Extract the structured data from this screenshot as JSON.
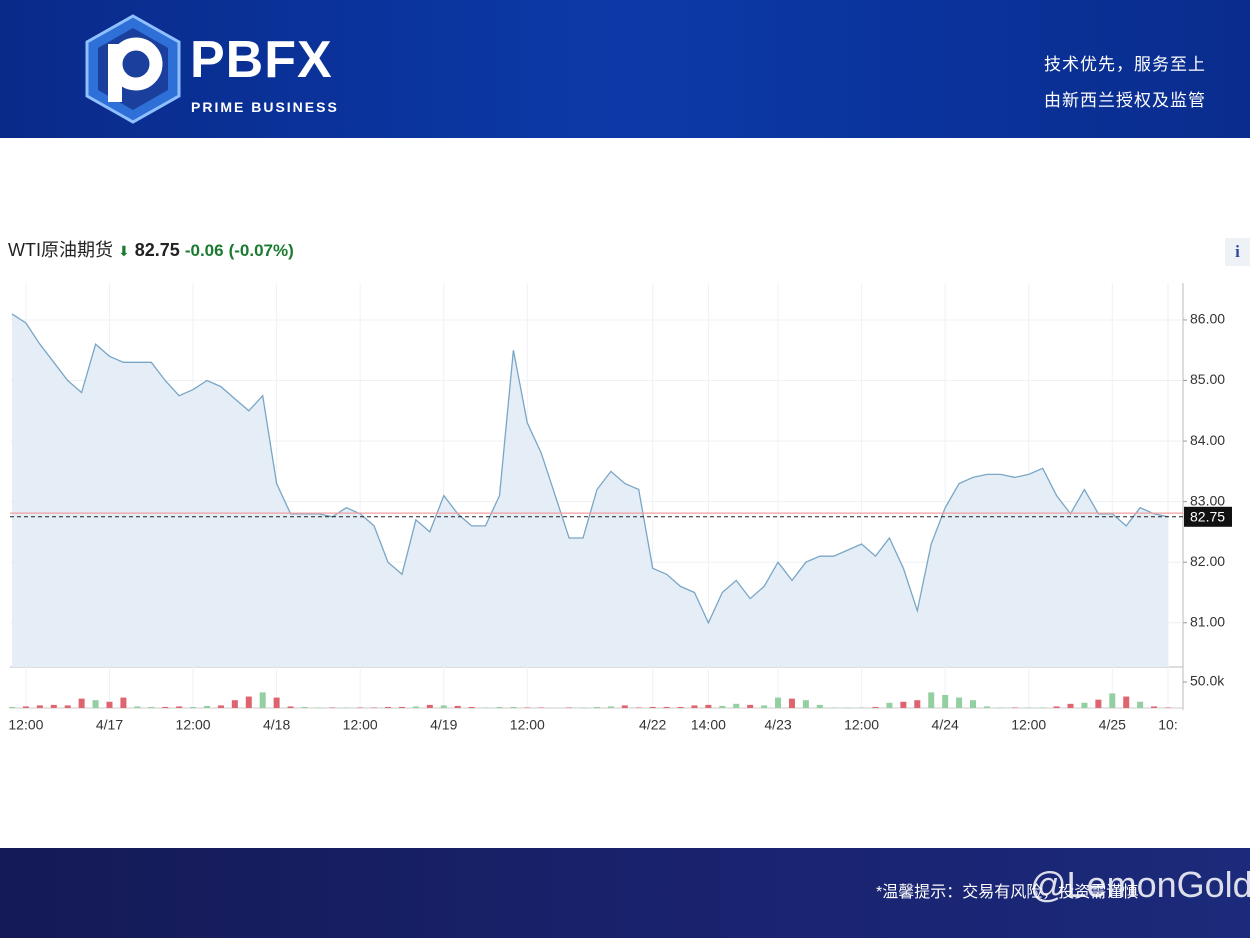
{
  "header": {
    "logo": "PBFX",
    "logo_sub": "PRIME BUSINESS",
    "slogan_1": "技术优先，服务至上",
    "slogan_2": "由新西兰授权及监管"
  },
  "chart_data": {
    "type": "line",
    "title": "WTI原油期货",
    "last": 82.75,
    "change": -0.06,
    "change_pct": {
      "value": -0.07,
      "label": "(-0.07%)"
    },
    "categories": [
      null,
      "12:00",
      null,
      null,
      null,
      null,
      null,
      "4/17",
      null,
      null,
      null,
      null,
      null,
      "12:00",
      null,
      null,
      null,
      null,
      null,
      "4/18",
      null,
      null,
      null,
      null,
      null,
      "12:00",
      null,
      null,
      null,
      null,
      null,
      "4/19",
      null,
      null,
      null,
      null,
      null,
      "12:00",
      null,
      null,
      null,
      null,
      null,
      null,
      null,
      null,
      "4/22",
      null,
      null,
      null,
      "14:00",
      null,
      null,
      null,
      null,
      "4/23",
      null,
      null,
      null,
      null,
      null,
      "12:00",
      null,
      null,
      null,
      null,
      null,
      "4/24",
      null,
      null,
      null,
      null,
      null,
      "12:00",
      null,
      null,
      null,
      null,
      null,
      "4/25",
      null,
      null,
      null,
      "10:"
    ],
    "series": [
      {
        "name": "WTI原油期货",
        "color": "#7aa6c6",
        "fill": "#e5eef6",
        "values": [
          86.1,
          85.95,
          85.6,
          85.3,
          85.0,
          84.8,
          85.6,
          85.4,
          85.3,
          85.3,
          85.3,
          85.0,
          84.75,
          84.85,
          85.0,
          84.9,
          84.7,
          84.5,
          84.75,
          83.3,
          82.8,
          82.8,
          82.8,
          82.75,
          82.9,
          82.8,
          82.6,
          82.0,
          81.8,
          82.7,
          82.5,
          83.1,
          82.8,
          82.6,
          82.6,
          83.1,
          85.5,
          84.3,
          83.8,
          83.1,
          82.4,
          82.4,
          83.2,
          83.5,
          83.3,
          83.2,
          81.9,
          81.8,
          81.6,
          81.5,
          81.0,
          81.5,
          81.7,
          81.4,
          81.6,
          82.0,
          81.7,
          82.0,
          82.1,
          82.1,
          82.2,
          82.3,
          82.1,
          82.4,
          81.9,
          81.2,
          82.3,
          82.9,
          83.3,
          83.4,
          83.45,
          83.45,
          83.4,
          83.45,
          83.55,
          83.1,
          82.8,
          83.2,
          82.8,
          82.8,
          82.6,
          82.9,
          82.8,
          82.75
        ]
      },
      {
        "name": "volume",
        "up_color": "#93cfa1",
        "down_color": "#de6470",
        "values": [
          2000,
          3000,
          5000,
          6000,
          5000,
          18000,
          15000,
          12000,
          20000,
          3000,
          2000,
          2000,
          3000,
          2000,
          4000,
          5000,
          15000,
          22000,
          30000,
          20000,
          3000,
          2000,
          1000,
          1000,
          1000,
          1000,
          1000,
          2000,
          2000,
          3000,
          6000,
          5000,
          4000,
          2000,
          1000,
          2000,
          2000,
          1000,
          1000,
          0,
          1000,
          1000,
          2000,
          3000,
          5000,
          1000,
          2000,
          2000,
          2000,
          5000,
          6000,
          4000,
          8000,
          6000,
          5000,
          20000,
          18000,
          15000,
          6000,
          1000,
          1000,
          1000,
          2000,
          10000,
          12000,
          15000,
          30000,
          25000,
          20000,
          15000,
          3000,
          1000,
          1000,
          1000,
          1000,
          3000,
          8000,
          10000,
          16000,
          28000,
          22000,
          12000,
          3000,
          1000
        ]
      }
    ],
    "ylim": [
      80.27,
      86.61
    ],
    "yticks": [
      {
        "value": 81,
        "label": "81.00"
      },
      {
        "value": 82,
        "label": "82.00"
      },
      {
        "value": 83,
        "label": "83.00"
      },
      {
        "value": 84,
        "label": "84.00"
      },
      {
        "value": 85,
        "label": "85.00"
      },
      {
        "value": 86,
        "label": "86.00"
      }
    ],
    "y2lim": [
      0,
      73000
    ],
    "y2ticks": [
      {
        "value": 50000,
        "label": "50.0k"
      }
    ],
    "reference_line": {
      "value": 82.81,
      "color": "#f0a0a0"
    },
    "grid": true
  },
  "footer": {
    "notice": "*温馨提示：交易有风险，投资需谨慎",
    "watermark": "@LemonGold"
  },
  "info_icon": "i"
}
